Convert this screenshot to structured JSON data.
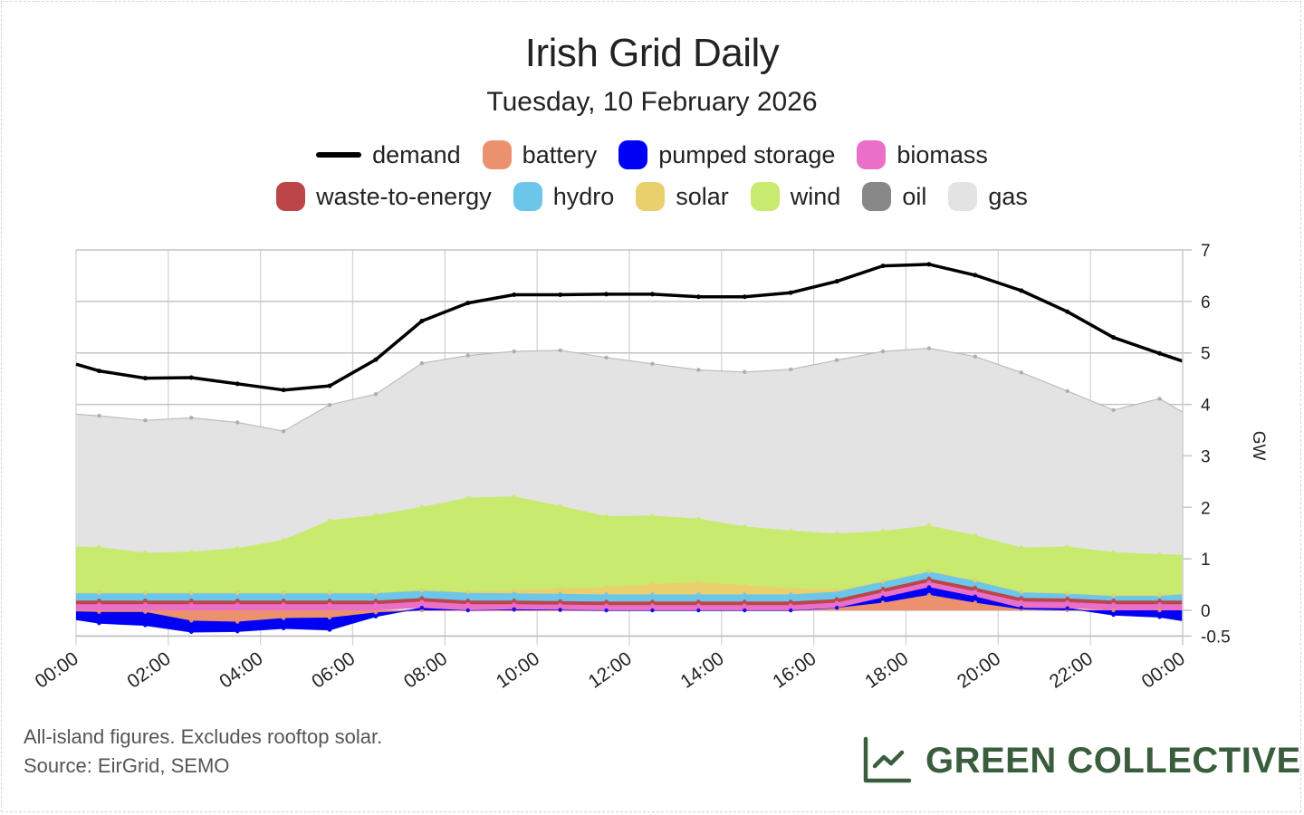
{
  "header": {
    "title": "Irish Grid Daily",
    "subtitle": "Tuesday, 10 February 2026"
  },
  "legend": [
    {
      "key": "demand",
      "label": "demand",
      "color": "#000000",
      "kind": "line"
    },
    {
      "key": "battery",
      "label": "battery",
      "color": "#ec9170"
    },
    {
      "key": "pumped_storage",
      "label": "pumped storage",
      "color": "#0000f5"
    },
    {
      "key": "biomass",
      "label": "biomass",
      "color": "#ea6fc8"
    },
    {
      "key": "waste",
      "label": "waste-to-energy",
      "color": "#bb4548"
    },
    {
      "key": "hydro",
      "label": "hydro",
      "color": "#6bc6ea"
    },
    {
      "key": "solar",
      "label": "solar",
      "color": "#e9d06d"
    },
    {
      "key": "wind",
      "label": "wind",
      "color": "#c8ea6f"
    },
    {
      "key": "oil",
      "label": "oil",
      "color": "#888888"
    },
    {
      "key": "gas",
      "label": "gas",
      "color": "#e3e3e3"
    }
  ],
  "footer": {
    "note": "All-island figures. Excludes rooftop solar.",
    "source": "Source: EirGrid, SEMO",
    "brand": "GREEN COLLECTIVE",
    "brand_color": "#3a5e3d"
  },
  "chart_data": {
    "type": "area",
    "title": "Irish Grid Daily",
    "subtitle": "Tuesday, 10 February 2026",
    "xlabel": "",
    "ylabel": "GW",
    "y_axis_side": "right",
    "ylim": [
      -0.5,
      7
    ],
    "yticks": [
      7,
      6,
      5,
      4,
      3,
      2,
      1,
      0,
      -0.5
    ],
    "xticks": [
      "00:00",
      "02:00",
      "04:00",
      "06:00",
      "08:00",
      "10:00",
      "12:00",
      "14:00",
      "16:00",
      "18:00",
      "20:00",
      "22:00",
      "00:00"
    ],
    "xtick_hours": [
      0,
      2,
      4,
      6,
      8,
      10,
      12,
      14,
      16,
      18,
      20,
      22,
      24
    ],
    "grid": true,
    "legend_position": "top",
    "stacked": true,
    "x_hours": [
      0,
      0.5,
      1.5,
      2.5,
      3.5,
      4.5,
      5.5,
      6.5,
      7.5,
      8.5,
      9.5,
      10.5,
      11.5,
      12.5,
      13.5,
      14.5,
      15.5,
      16.5,
      17.5,
      18.5,
      19.5,
      20.5,
      21.5,
      22.5,
      23.5,
      24
    ],
    "demand": [
      4.78,
      4.65,
      4.51,
      4.52,
      4.4,
      4.28,
      4.36,
      4.87,
      5.62,
      5.97,
      6.13,
      6.13,
      6.14,
      6.14,
      6.09,
      6.09,
      6.17,
      6.39,
      6.69,
      6.72,
      6.51,
      6.21,
      5.8,
      5.3,
      4.99,
      4.84
    ],
    "series": [
      {
        "name": "battery",
        "values": [
          -0.02,
          -0.03,
          -0.03,
          -0.2,
          -0.22,
          -0.15,
          -0.14,
          -0.04,
          0.0,
          0.0,
          0.0,
          0.0,
          0.0,
          0.0,
          0.0,
          0.0,
          0.0,
          0.05,
          0.15,
          0.3,
          0.15,
          0.02,
          0.0,
          0.0,
          0.0,
          0.0
        ]
      },
      {
        "name": "pumped storage",
        "values": [
          -0.16,
          -0.22,
          -0.26,
          -0.22,
          -0.19,
          -0.2,
          -0.24,
          -0.08,
          0.05,
          0.0,
          0.02,
          0.01,
          0.0,
          0.0,
          0.0,
          0.0,
          0.0,
          0.0,
          0.1,
          0.15,
          0.12,
          0.03,
          0.04,
          -0.09,
          -0.13,
          -0.2
        ]
      },
      {
        "name": "biomass",
        "values": [
          0.12,
          0.12,
          0.12,
          0.12,
          0.12,
          0.12,
          0.12,
          0.12,
          0.12,
          0.12,
          0.1,
          0.1,
          0.1,
          0.1,
          0.1,
          0.1,
          0.1,
          0.1,
          0.1,
          0.1,
          0.1,
          0.12,
          0.12,
          0.12,
          0.12,
          0.12
        ]
      },
      {
        "name": "waste-to-energy",
        "values": [
          0.07,
          0.07,
          0.07,
          0.07,
          0.07,
          0.07,
          0.07,
          0.07,
          0.07,
          0.07,
          0.07,
          0.07,
          0.07,
          0.07,
          0.07,
          0.07,
          0.07,
          0.07,
          0.07,
          0.07,
          0.07,
          0.07,
          0.07,
          0.07,
          0.07,
          0.07
        ]
      },
      {
        "name": "hydro",
        "values": [
          0.15,
          0.15,
          0.15,
          0.15,
          0.15,
          0.15,
          0.15,
          0.15,
          0.15,
          0.15,
          0.14,
          0.14,
          0.14,
          0.14,
          0.14,
          0.14,
          0.14,
          0.14,
          0.14,
          0.14,
          0.14,
          0.12,
          0.1,
          0.1,
          0.1,
          0.13
        ]
      },
      {
        "name": "solar",
        "values": [
          0,
          0,
          0,
          0,
          0,
          0,
          0,
          0,
          0,
          0.02,
          0.06,
          0.11,
          0.14,
          0.2,
          0.24,
          0.18,
          0.12,
          0.04,
          0,
          0,
          0,
          0,
          0,
          0,
          0,
          0
        ]
      },
      {
        "name": "wind",
        "values": [
          0.9,
          0.89,
          0.78,
          0.8,
          0.87,
          1.03,
          1.41,
          1.51,
          1.62,
          1.83,
          1.82,
          1.6,
          1.38,
          1.33,
          1.23,
          1.14,
          1.12,
          1.09,
          0.98,
          0.89,
          0.88,
          0.86,
          0.91,
          0.84,
          0.8,
          0.76
        ]
      },
      {
        "name": "oil",
        "values": [
          0,
          0,
          0,
          0,
          0,
          0,
          0,
          0,
          0,
          0,
          0,
          0,
          0,
          0,
          0,
          0,
          0,
          0,
          0,
          0,
          0,
          0,
          0,
          0,
          0,
          0
        ]
      },
      {
        "name": "gas",
        "values": [
          2.57,
          2.55,
          2.57,
          2.6,
          2.44,
          2.11,
          2.24,
          2.35,
          2.79,
          2.76,
          2.82,
          3.02,
          3.08,
          2.95,
          2.89,
          3.0,
          3.13,
          3.37,
          3.49,
          3.44,
          3.47,
          3.4,
          3.02,
          2.76,
          3.02,
          2.77
        ]
      }
    ]
  }
}
